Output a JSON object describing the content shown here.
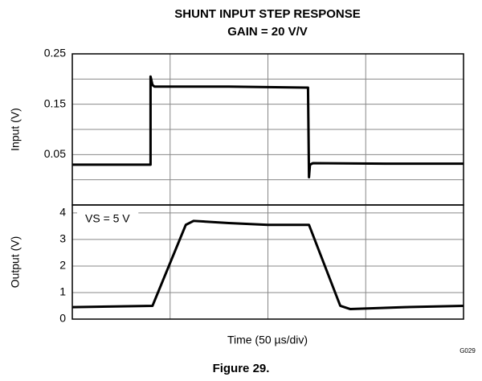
{
  "chart_data": [
    {
      "type": "line",
      "title": "SHUNT INPUT STEP RESPONSE",
      "subtitle": "GAIN = 20 V/V",
      "ylabel": "Input (V)",
      "x": [
        0,
        40,
        40,
        41,
        42,
        80,
        120.5,
        121,
        121.5,
        123,
        160,
        200
      ],
      "series": [
        {
          "color": "#000000",
          "values": [
            0.03,
            0.03,
            0.205,
            0.188,
            0.185,
            0.185,
            0.183,
            0.005,
            0.03,
            0.033,
            0.032,
            0.032
          ]
        }
      ],
      "xlim": [
        0,
        200
      ],
      "xgrid": [
        50,
        100,
        150
      ],
      "ylim": [
        -0.05,
        0.25
      ],
      "yticks": [
        0.05,
        0.15,
        0.25
      ],
      "ygrid": [
        0,
        0.1,
        0.2
      ],
      "grid": true
    },
    {
      "type": "line",
      "xlabel": "Time (50 µs/div)",
      "ylabel": "Output (V)",
      "annotation": "VS = 5 V",
      "x": [
        0,
        41,
        58,
        62,
        80,
        100,
        121,
        137,
        142,
        170,
        200
      ],
      "series": [
        {
          "color": "#000000",
          "values": [
            0.45,
            0.5,
            3.55,
            3.7,
            3.62,
            3.55,
            3.55,
            0.5,
            0.38,
            0.45,
            0.5
          ]
        }
      ],
      "xlim": [
        0,
        200
      ],
      "xgrid": [
        50,
        100,
        150
      ],
      "ylim": [
        0,
        4.3
      ],
      "yticks": [
        0,
        1,
        2,
        3,
        4
      ],
      "grid": true
    }
  ],
  "code": "G029",
  "caption": "Figure 29."
}
